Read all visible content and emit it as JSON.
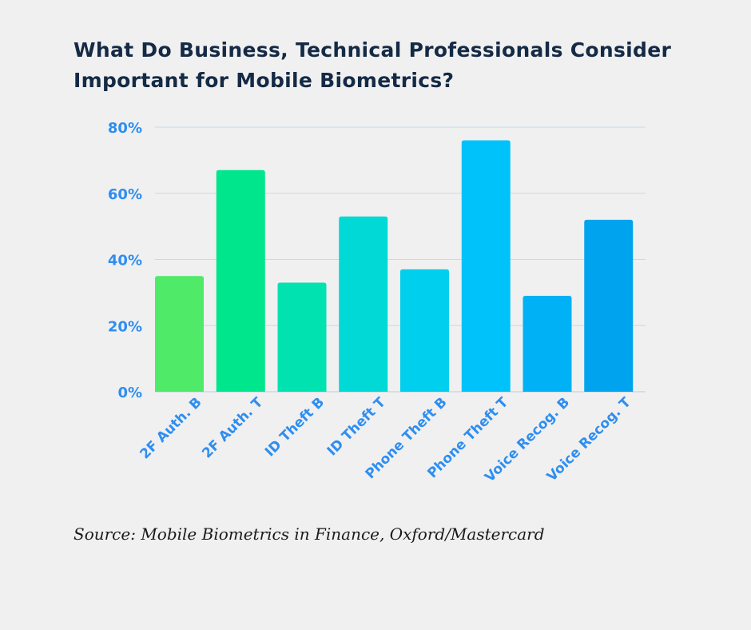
{
  "title_lines": [
    "What Do Business, Technical Professionals Consider",
    "Important for Mobile Biometrics?"
  ],
  "source": "Source: Mobile Biometrics in Finance, Oxford/Mastercard",
  "chart_data": {
    "type": "bar",
    "title": "What Do Business, Technical Professionals Consider Important for Mobile Biometrics?",
    "xlabel": "",
    "ylabel": "",
    "categories": [
      "2F Auth. B",
      "2F Auth. T",
      "ID Theft B",
      "ID Theft T",
      "Phone Theft B",
      "Phone Theft T",
      "Voice Recog. B",
      "Voice Recog. T"
    ],
    "values": [
      35,
      67,
      33,
      53,
      37,
      76,
      29,
      52
    ],
    "ylim": [
      0,
      80
    ],
    "yticks": [
      0,
      20,
      40,
      60,
      80
    ],
    "ytick_labels": [
      "0%",
      "20%",
      "40%",
      "60%",
      "80%"
    ],
    "bar_colors": [
      "#4eea68",
      "#00e68c",
      "#00e2b0",
      "#00d9d6",
      "#00cfee",
      "#00c2fb",
      "#00b2f5",
      "#00a4ee"
    ],
    "grid": true
  }
}
